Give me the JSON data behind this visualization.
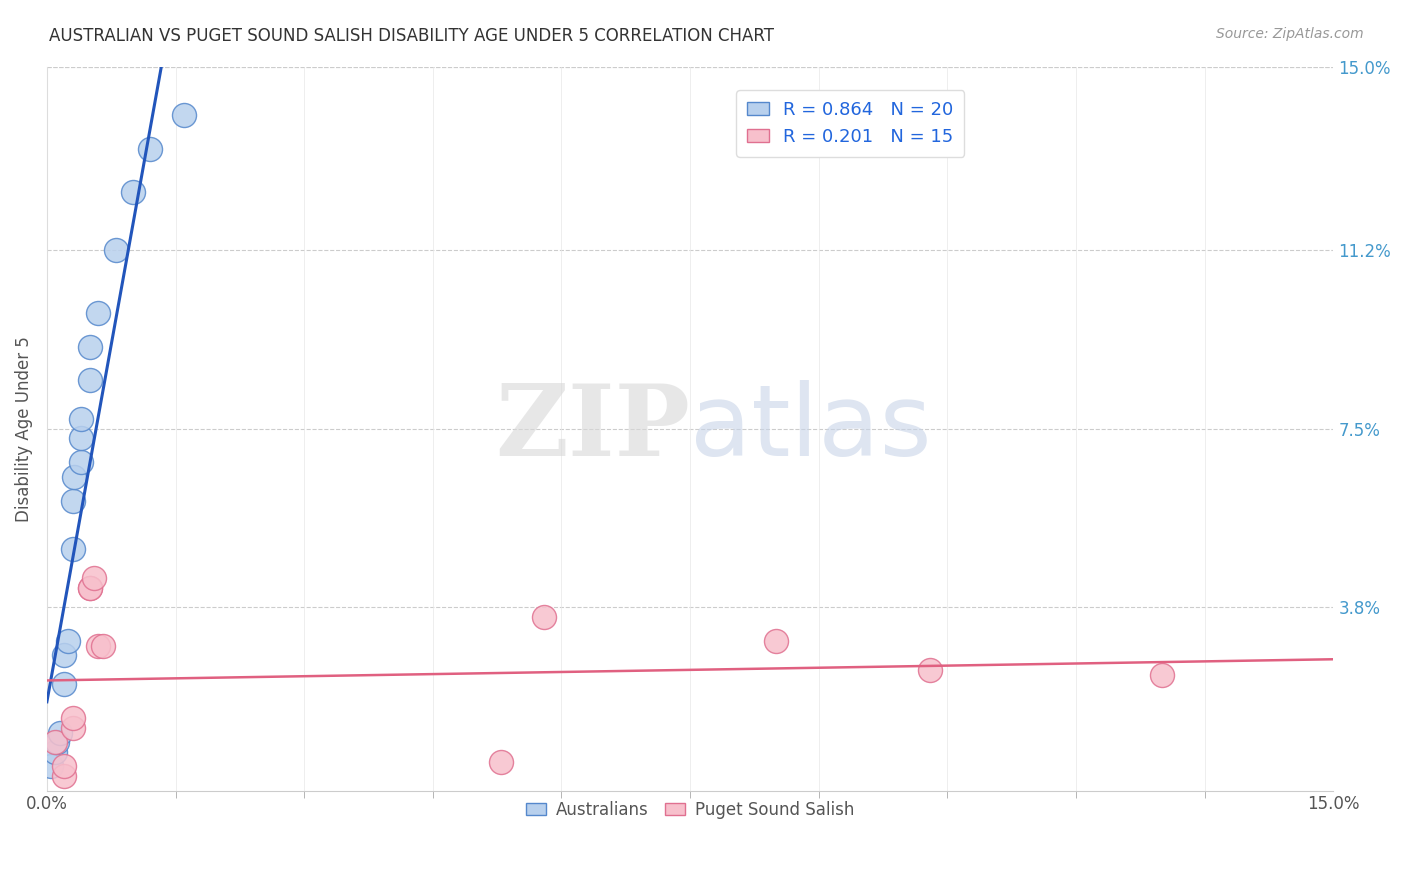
{
  "title": "AUSTRALIAN VS PUGET SOUND SALISH DISABILITY AGE UNDER 5 CORRELATION CHART",
  "source": "Source: ZipAtlas.com",
  "ylabel": "Disability Age Under 5",
  "xlim": [
    0,
    0.15
  ],
  "ylim": [
    0,
    0.15
  ],
  "ytick_labels_right": [
    "15.0%",
    "11.2%",
    "7.5%",
    "3.8%"
  ],
  "ytick_vals_right": [
    0.15,
    0.112,
    0.075,
    0.038
  ],
  "grid_color": "#cccccc",
  "background_color": "#ffffff",
  "australians": {
    "x": [
      0.0005,
      0.001,
      0.0012,
      0.0015,
      0.002,
      0.002,
      0.0025,
      0.003,
      0.003,
      0.0032,
      0.004,
      0.004,
      0.004,
      0.005,
      0.005,
      0.006,
      0.008,
      0.01,
      0.012,
      0.016
    ],
    "y": [
      0.005,
      0.008,
      0.01,
      0.012,
      0.022,
      0.028,
      0.031,
      0.05,
      0.06,
      0.065,
      0.068,
      0.073,
      0.077,
      0.085,
      0.092,
      0.099,
      0.112,
      0.124,
      0.133,
      0.14
    ],
    "color": "#b8d0ed",
    "edge_color": "#5588cc",
    "R": 0.864,
    "N": 20,
    "line_color": "#2255bb",
    "legend_label": "Australians"
  },
  "puget": {
    "x": [
      0.001,
      0.002,
      0.002,
      0.003,
      0.003,
      0.005,
      0.005,
      0.0055,
      0.006,
      0.0065,
      0.053,
      0.058,
      0.085,
      0.103,
      0.13
    ],
    "y": [
      0.01,
      0.003,
      0.005,
      0.013,
      0.015,
      0.042,
      0.042,
      0.044,
      0.03,
      0.03,
      0.006,
      0.036,
      0.031,
      0.025,
      0.024
    ],
    "color": "#f7c0cc",
    "edge_color": "#e07090",
    "R": 0.201,
    "N": 15,
    "line_color": "#e06080",
    "legend_label": "Puget Sound Salish"
  }
}
